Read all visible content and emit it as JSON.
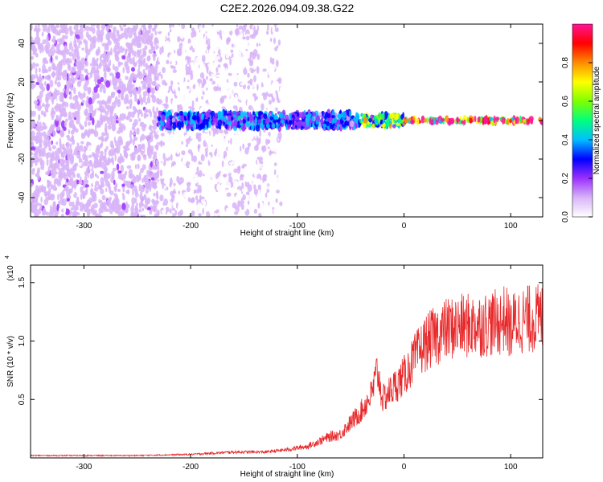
{
  "title": "C2E2.2026.094.09.38.G22",
  "colors": {
    "snr_line": "#e8282a",
    "colorbar_stops": [
      "#ffffff",
      "#d8b4f8",
      "#9b30ff",
      "#0000ff",
      "#00bfff",
      "#00ff7f",
      "#7fff00",
      "#ffff00",
      "#ff8c00",
      "#ff0000",
      "#ff1493"
    ]
  },
  "chart_data": [
    {
      "type": "heatmap",
      "name": "spectrogram",
      "title": "C2E2.2026.094.09.38.G22",
      "xlabel": "Height of straight line (km)",
      "ylabel": "Frequency (Hz)",
      "xlim": [
        -350,
        130
      ],
      "ylim": [
        -50,
        50
      ],
      "xticks": [
        -300,
        -200,
        -100,
        0,
        100
      ],
      "yticks": [
        -40,
        -20,
        0,
        20,
        40
      ],
      "colorbar": {
        "label": "Normalized spectral amplitude",
        "range": [
          0,
          1
        ],
        "ticks": [
          "0.0",
          "0.2",
          "0.4",
          "0.6",
          "0.8"
        ]
      },
      "description_regions": [
        {
          "x_from": -350,
          "x_to": -230,
          "freq_from": -50,
          "freq_to": 50,
          "amplitude": 0.12
        },
        {
          "x_from": -230,
          "x_to": -115,
          "freq_from": -50,
          "freq_to": 50,
          "amplitude": 0.05
        },
        {
          "x_from": -230,
          "x_to": -40,
          "freq_center": 0,
          "freq_halfwidth": 4,
          "amplitude": 0.35
        },
        {
          "x_from": -40,
          "x_to": 0,
          "freq_center": 0,
          "freq_halfwidth": 3,
          "amplitude": 0.6
        },
        {
          "x_from": 0,
          "x_to": 130,
          "freq_center": 0,
          "freq_halfwidth": 1,
          "amplitude": 0.95
        }
      ]
    },
    {
      "type": "line",
      "name": "snr",
      "xlabel": "Height of straight line (km)",
      "ylabel": "SNR (10 * v/v)",
      "scale_note": "(x10",
      "scale_exp": "4",
      "xlim": [
        -350,
        130
      ],
      "ylim": [
        0,
        1.65
      ],
      "xticks": [
        -300,
        -200,
        -100,
        0,
        100
      ],
      "yticks": [
        "0.5",
        "1.0",
        "1.5"
      ],
      "ytick_values": [
        0.5,
        1.0,
        1.5
      ],
      "series": [
        {
          "x": [
            -350,
            -300,
            -250,
            -200,
            -160,
            -130,
            -110,
            -90,
            -70,
            -60,
            -50,
            -40,
            -30,
            -25,
            -20,
            -10,
            0,
            10,
            20,
            30,
            40,
            50,
            60,
            70,
            80,
            90,
            95,
            100,
            105,
            110,
            120,
            130
          ],
          "y": [
            0.02,
            0.02,
            0.02,
            0.03,
            0.05,
            0.05,
            0.07,
            0.1,
            0.18,
            0.2,
            0.3,
            0.4,
            0.55,
            0.75,
            0.5,
            0.6,
            0.7,
            0.85,
            0.98,
            1.05,
            1.1,
            1.12,
            1.13,
            1.14,
            1.15,
            1.16,
            1.2,
            1.1,
            1.18,
            1.18,
            1.19,
            1.2
          ]
        }
      ]
    }
  ]
}
